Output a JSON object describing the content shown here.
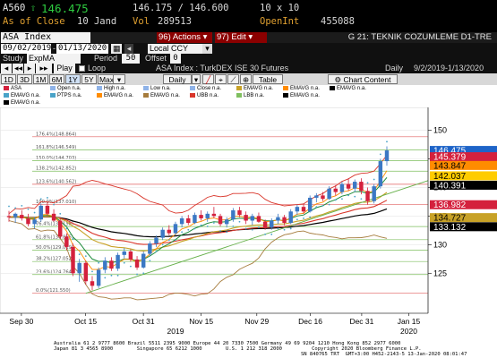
{
  "quote": {
    "ticker": "A560",
    "arrow": "⇧",
    "price": "146.475",
    "bid_ask": "146.175 / 146.600",
    "size": "10 x 10",
    "as_of_label": "As of Close",
    "as_of_date": "10 Jand",
    "vol_label": "Vol",
    "volume": "289513",
    "openint_label": "OpenInt",
    "openint": "455088"
  },
  "toolbar": {
    "security": "ASA Index",
    "actions_label": "96) Actions ▾",
    "edit_label": "97) Edit ▾",
    "page_title": "G 21: TEKNIK COZUMLEME D1-TRE"
  },
  "range": {
    "start": "09/02/2019",
    "end": "01/13/2020",
    "currency": "Local CCY"
  },
  "study": {
    "label": "Study",
    "value": "ExpMA",
    "period_label": "Period",
    "period": "50",
    "offset_label": "Offset",
    "offset": "0"
  },
  "play": {
    "play_label": "Play",
    "loop_label": "Loop",
    "description": "ASA Index : TurkDEX ISE 30 Futures",
    "freq": "Daily",
    "dates": "9/2/2019-1/13/2020"
  },
  "periods": [
    "1D",
    "3D",
    "1M",
    "6M",
    "1Y",
    "5Y",
    "Max"
  ],
  "selected_period": "1Y",
  "controls": {
    "daily": "Daily",
    "table": "Table",
    "chart_content": "Chart Content"
  },
  "legend": {
    "row1": [
      "ASA",
      "Open n.a.",
      "High n.a.",
      "Low n.a.",
      "Close n.a.",
      "EMAVG n.a.",
      "EMAVG n.a.",
      "EMAVG n.a."
    ],
    "row2": [
      "EMAVG n.a.",
      "PTPS n.a.",
      "EMAVG n.a.",
      "EMAVG n.a.",
      "UBB n.a.",
      "LBB n.a.",
      "EMAVG n.a."
    ],
    "row3": [
      "EMAVG n.a."
    ]
  },
  "colors": {
    "candle_up": "#3b78c4",
    "candle_down": "#d4213d",
    "ema_fast": "#1e8c3b",
    "ema_mid": "#c8a227",
    "ema_black": "#000000",
    "bb_red": "#d9362b",
    "ema_tan": "#a67c3d",
    "trend": "#66b04a",
    "fib_red": "#e06060",
    "fib_green": "#7fbf5f",
    "psar": "#4aa3c8"
  },
  "chart_data": {
    "type": "candlestick",
    "y_range": [
      118,
      154
    ],
    "y_ticks": [
      150,
      145,
      140,
      135,
      130,
      125
    ],
    "x_labels": [
      "Sep 30",
      "Oct 15",
      "Oct 31",
      "Nov 15",
      "Nov 29",
      "Dec 16",
      "Dec 31",
      "Jan 15"
    ],
    "year_labels": [
      "2019",
      "2020"
    ],
    "fib_levels": [
      {
        "label": "176.4%(148.864)",
        "value": 148.864
      },
      {
        "label": "161.8%(146.549)",
        "value": 146.549
      },
      {
        "label": "150.0%(144.703)",
        "value": 144.703
      },
      {
        "label": "138.2%(142.852)",
        "value": 142.852
      },
      {
        "label": "123.6%(140.562)",
        "value": 140.562
      },
      {
        "label": "100.0%(137.010)",
        "value": 137.01
      },
      {
        "label": "76.4%(133.158)",
        "value": 133.158
      },
      {
        "label": "61.8%(130.865)",
        "value": 130.865
      },
      {
        "label": "50.0%(129.019)",
        "value": 129.019
      },
      {
        "label": "38.2%(127.052)",
        "value": 127.052
      },
      {
        "label": "23.6%(124.764)",
        "value": 124.764
      },
      {
        "label": "0.0%(121.550)",
        "value": 121.55
      }
    ],
    "right_badges": [
      {
        "value": "146.475",
        "bg": "#1e64c8",
        "fg": "#ffffff"
      },
      {
        "value": "145.379",
        "bg": "#d4213d",
        "fg": "#ffffff"
      },
      {
        "value": "143.847",
        "bg": "#ff8c00",
        "fg": "#000000"
      },
      {
        "value": "142.037",
        "bg": "#ffcc00",
        "fg": "#000000"
      },
      {
        "value": "140.391",
        "bg": "#000000",
        "fg": "#ffffff"
      },
      {
        "value": "136.982",
        "bg": "#d4213d",
        "fg": "#ffffff"
      },
      {
        "value": "134.727",
        "bg": "#c8a227",
        "fg": "#000000"
      },
      {
        "value": "133.132",
        "bg": "#000000",
        "fg": "#ffffff"
      }
    ],
    "candles": [
      {
        "o": 135.0,
        "h": 135.9,
        "l": 134.0,
        "c": 134.8
      },
      {
        "o": 134.8,
        "h": 135.6,
        "l": 133.8,
        "c": 135.4
      },
      {
        "o": 135.2,
        "h": 136.0,
        "l": 134.2,
        "c": 134.6
      },
      {
        "o": 134.6,
        "h": 135.4,
        "l": 133.2,
        "c": 133.6
      },
      {
        "o": 133.6,
        "h": 134.8,
        "l": 132.8,
        "c": 134.4
      },
      {
        "o": 134.4,
        "h": 137.2,
        "l": 134.0,
        "c": 136.8
      },
      {
        "o": 136.8,
        "h": 137.4,
        "l": 135.0,
        "c": 135.4
      },
      {
        "o": 135.4,
        "h": 136.2,
        "l": 134.0,
        "c": 134.2
      },
      {
        "o": 134.2,
        "h": 134.6,
        "l": 131.0,
        "c": 131.4
      },
      {
        "o": 131.4,
        "h": 132.0,
        "l": 129.0,
        "c": 129.6
      },
      {
        "o": 129.6,
        "h": 130.2,
        "l": 124.5,
        "c": 125.0
      },
      {
        "o": 125.0,
        "h": 127.5,
        "l": 123.5,
        "c": 126.8
      },
      {
        "o": 126.8,
        "h": 127.2,
        "l": 123.0,
        "c": 123.6
      },
      {
        "o": 123.6,
        "h": 124.5,
        "l": 122.0,
        "c": 122.8
      },
      {
        "o": 122.8,
        "h": 126.0,
        "l": 122.4,
        "c": 125.6
      },
      {
        "o": 125.6,
        "h": 127.8,
        "l": 125.0,
        "c": 127.2
      },
      {
        "o": 127.2,
        "h": 127.8,
        "l": 125.4,
        "c": 125.8
      },
      {
        "o": 125.8,
        "h": 128.6,
        "l": 125.4,
        "c": 128.2
      },
      {
        "o": 128.2,
        "h": 129.4,
        "l": 127.6,
        "c": 128.8
      },
      {
        "o": 128.8,
        "h": 129.2,
        "l": 127.0,
        "c": 127.4
      },
      {
        "o": 127.4,
        "h": 128.0,
        "l": 125.6,
        "c": 126.0
      },
      {
        "o": 126.0,
        "h": 128.8,
        "l": 125.8,
        "c": 128.4
      },
      {
        "o": 128.4,
        "h": 130.6,
        "l": 128.0,
        "c": 130.2
      },
      {
        "o": 130.2,
        "h": 131.6,
        "l": 129.6,
        "c": 131.2
      },
      {
        "o": 131.2,
        "h": 133.0,
        "l": 130.8,
        "c": 132.6
      },
      {
        "o": 132.6,
        "h": 133.4,
        "l": 131.6,
        "c": 132.0
      },
      {
        "o": 132.0,
        "h": 134.0,
        "l": 131.6,
        "c": 133.6
      },
      {
        "o": 133.6,
        "h": 135.0,
        "l": 133.0,
        "c": 134.6
      },
      {
        "o": 134.6,
        "h": 135.2,
        "l": 133.4,
        "c": 133.8
      },
      {
        "o": 133.8,
        "h": 135.6,
        "l": 133.6,
        "c": 135.2
      },
      {
        "o": 135.2,
        "h": 136.0,
        "l": 134.2,
        "c": 134.6
      },
      {
        "o": 134.6,
        "h": 135.8,
        "l": 134.0,
        "c": 135.4
      },
      {
        "o": 135.4,
        "h": 136.6,
        "l": 134.6,
        "c": 135.0
      },
      {
        "o": 135.0,
        "h": 135.4,
        "l": 133.2,
        "c": 133.6
      },
      {
        "o": 133.6,
        "h": 134.8,
        "l": 133.0,
        "c": 134.4
      },
      {
        "o": 134.4,
        "h": 136.4,
        "l": 134.0,
        "c": 136.0
      },
      {
        "o": 136.0,
        "h": 136.6,
        "l": 134.8,
        "c": 135.2
      },
      {
        "o": 135.2,
        "h": 135.8,
        "l": 133.6,
        "c": 134.2
      },
      {
        "o": 134.2,
        "h": 135.4,
        "l": 133.4,
        "c": 135.0
      },
      {
        "o": 135.0,
        "h": 135.6,
        "l": 133.8,
        "c": 134.0
      },
      {
        "o": 134.0,
        "h": 134.4,
        "l": 132.6,
        "c": 133.0
      },
      {
        "o": 133.0,
        "h": 134.6,
        "l": 132.6,
        "c": 134.2
      },
      {
        "o": 134.2,
        "h": 135.4,
        "l": 133.6,
        "c": 134.8
      },
      {
        "o": 134.8,
        "h": 135.2,
        "l": 133.4,
        "c": 133.8
      },
      {
        "o": 133.8,
        "h": 136.2,
        "l": 133.6,
        "c": 135.8
      },
      {
        "o": 135.8,
        "h": 137.0,
        "l": 135.2,
        "c": 136.6
      },
      {
        "o": 136.6,
        "h": 137.2,
        "l": 135.4,
        "c": 135.8
      },
      {
        "o": 135.8,
        "h": 138.6,
        "l": 135.6,
        "c": 138.2
      },
      {
        "o": 138.2,
        "h": 139.0,
        "l": 137.4,
        "c": 138.6
      },
      {
        "o": 138.6,
        "h": 139.2,
        "l": 137.6,
        "c": 138.0
      },
      {
        "o": 138.0,
        "h": 140.2,
        "l": 137.8,
        "c": 139.8
      },
      {
        "o": 139.8,
        "h": 140.4,
        "l": 138.6,
        "c": 139.2
      },
      {
        "o": 139.2,
        "h": 141.0,
        "l": 138.8,
        "c": 140.6
      },
      {
        "o": 140.6,
        "h": 141.6,
        "l": 139.4,
        "c": 139.8
      },
      {
        "o": 139.8,
        "h": 141.4,
        "l": 139.2,
        "c": 141.0
      },
      {
        "o": 141.0,
        "h": 141.6,
        "l": 138.8,
        "c": 139.4
      },
      {
        "o": 139.4,
        "h": 140.0,
        "l": 137.0,
        "c": 137.6
      },
      {
        "o": 137.6,
        "h": 140.6,
        "l": 137.2,
        "c": 140.2
      },
      {
        "o": 140.2,
        "h": 145.0,
        "l": 139.8,
        "c": 144.6
      },
      {
        "o": 144.6,
        "h": 147.2,
        "l": 143.8,
        "c": 146.475
      }
    ]
  },
  "footer": {
    "line1": "Australia 61 2 9777 8600 Brazil 5511 2395 9000 Europe 44 20 7330 7500 Germany 49 69 9204 1210 Hong Kong 852 2977 6000",
    "line2": "Japan 81 3 4565 8900        Singapore 65 6212 1000        U.S. 1 212 318 2000          Copyright 2020 Bloomberg Finance L.P.",
    "line3": "SN 840765 TRT  GMT+3:00 H452-2143-5 13-Jan-2020 08:01:47"
  }
}
